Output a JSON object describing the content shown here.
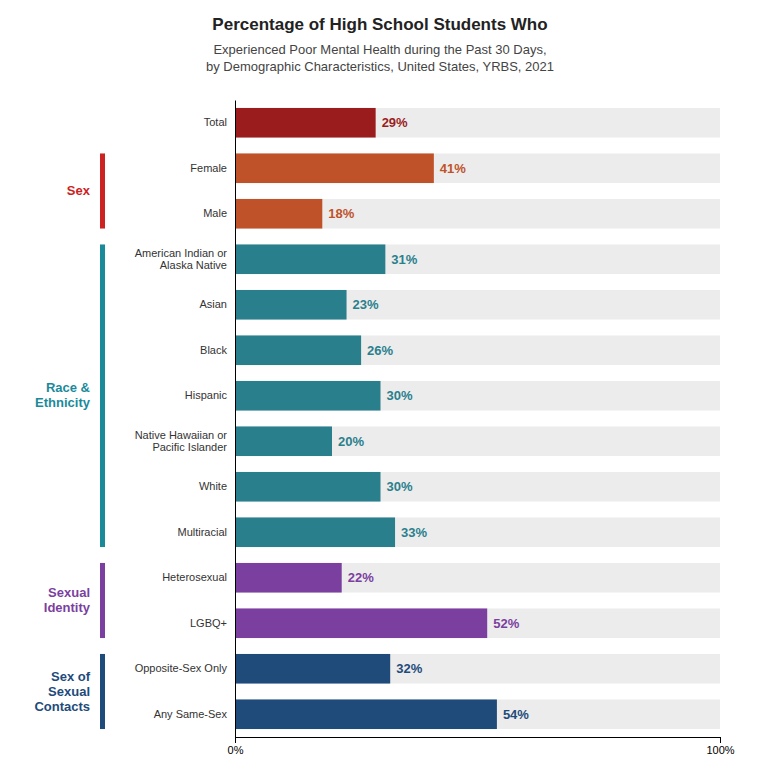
{
  "chart_data": {
    "type": "bar",
    "orientation": "horizontal",
    "title": "Percentage of High School Students Who",
    "subtitle": "Experienced Poor Mental Health during the Past 30 Days,\nby Demographic Characteristics, United States, YRBS, 2021",
    "categories": [
      "Total",
      "Female",
      "Male",
      "American Indian or\nAlaska Native",
      "Asian",
      "Black",
      "Hispanic",
      "Native Hawaiian or\nPacific Islander",
      "White",
      "Multiracial",
      "Heterosexual",
      "LGBQ+",
      "Opposite-Sex Only",
      "Any Same-Sex"
    ],
    "values": [
      29,
      41,
      18,
      31,
      23,
      26,
      30,
      20,
      30,
      33,
      22,
      52,
      32,
      54
    ],
    "value_labels": [
      "29%",
      "41%",
      "18%",
      "31%",
      "23%",
      "26%",
      "30%",
      "20%",
      "30%",
      "33%",
      "22%",
      "52%",
      "32%",
      "54%"
    ],
    "colors": [
      "#9b1c1c",
      "#c0522a",
      "#c0522a",
      "#2a7f8c",
      "#2a7f8c",
      "#2a7f8c",
      "#2a7f8c",
      "#2a7f8c",
      "#2a7f8c",
      "#2a7f8c",
      "#7b3fa0",
      "#7b3fa0",
      "#1e4b7a",
      "#1e4b7a"
    ],
    "groups": [
      {
        "label": "Sex",
        "color": "#cc2222",
        "categories": [
          "Female",
          "Male"
        ]
      },
      {
        "label": "Race &\nEthnicity",
        "color": "#1a8a9a",
        "categories": [
          "American Indian or\nAlaska Native",
          "Asian",
          "Black",
          "Hispanic",
          "Native Hawaiian or\nPacific Islander",
          "White",
          "Multiracial"
        ]
      },
      {
        "label": "Sexual\nIdentity",
        "color": "#7b3fa0",
        "categories": [
          "Heterosexual",
          "LGBQ+"
        ]
      },
      {
        "label": "Sex of\nSexual\nContacts",
        "color": "#1e4b7a",
        "categories": [
          "Opposite-Sex Only",
          "Any Same-Sex"
        ]
      }
    ],
    "xlim": [
      0,
      100
    ],
    "xticks": [
      {
        "value": 0,
        "label": "0%"
      },
      {
        "value": 100,
        "label": "100%"
      }
    ],
    "data_labels": true,
    "grid": false
  }
}
